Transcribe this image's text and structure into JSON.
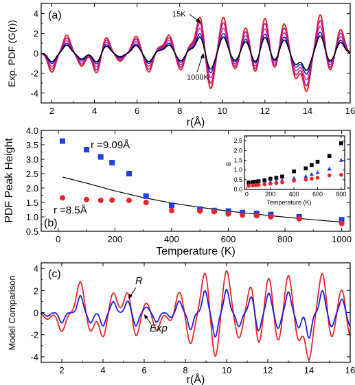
{
  "chart_data": [
    {
      "panel": "(a)",
      "type": "line",
      "xlabel": "r(Å)",
      "ylabel": "Exp. PDF (G(r))",
      "xlim": [
        1.5,
        16
      ],
      "ylim": [
        -5,
        5
      ],
      "xticks": [
        "2",
        "4",
        "6",
        "8",
        "10",
        "12",
        "14",
        "16"
      ],
      "yticks": [
        "-4",
        "-2",
        "0",
        "2",
        "4"
      ],
      "annotations": [
        "15K",
        "1000K"
      ],
      "peaks": [
        {
          "r": 2.0,
          "a": -1.9
        },
        {
          "r": 2.7,
          "a": 1.8
        },
        {
          "r": 3.4,
          "a": -1.3
        },
        {
          "r": 4.1,
          "a": -2.0
        },
        {
          "r": 4.55,
          "a": 1.6
        },
        {
          "r": 5.2,
          "a": -0.8
        },
        {
          "r": 5.95,
          "a": 1.7
        },
        {
          "r": 6.55,
          "a": -1.9
        },
        {
          "r": 7.05,
          "a": 0.6
        },
        {
          "r": 7.5,
          "a": 1.8
        },
        {
          "r": 8.05,
          "a": -1.7
        },
        {
          "r": 8.5,
          "a": 0.8
        },
        {
          "r": 8.95,
          "a": 3.6
        },
        {
          "r": 9.45,
          "a": -3.6
        },
        {
          "r": 10.05,
          "a": 3.6
        },
        {
          "r": 10.6,
          "a": -1.6
        },
        {
          "r": 11.1,
          "a": 2.6
        },
        {
          "r": 11.55,
          "a": -2.0
        },
        {
          "r": 12.0,
          "a": 3.6
        },
        {
          "r": 12.45,
          "a": -1.6
        },
        {
          "r": 12.9,
          "a": 3.0
        },
        {
          "r": 13.45,
          "a": -2.5
        },
        {
          "r": 13.95,
          "a": -3.8
        },
        {
          "r": 14.6,
          "a": 3.9
        },
        {
          "r": 15.05,
          "a": -1.8
        },
        {
          "r": 15.55,
          "a": 2.4
        }
      ],
      "series": [
        {
          "scale": 1.0,
          "color": "#e8262a",
          "width": 2.0
        },
        {
          "scale": 0.85,
          "color": "#a0179e",
          "width": 1.6
        },
        {
          "scale": 0.7,
          "color": "#e01875",
          "width": 1.4
        },
        {
          "scale": 0.55,
          "color": "#1a1ad8",
          "width": 1.6
        },
        {
          "scale": 0.45,
          "color": "#000000",
          "width": 1.6
        }
      ]
    },
    {
      "panel": "(b)",
      "type": "scatter",
      "xlabel": "Temperature (K)",
      "ylabel": "PDF Peak Height",
      "xlim": [
        -60,
        1030
      ],
      "ylim": [
        0.5,
        4.0
      ],
      "xticks": [
        "0",
        "200",
        "400",
        "600",
        "800",
        "1000"
      ],
      "yticks": [
        "0.5",
        "1.0",
        "1.5",
        "2.0",
        "2.5",
        "3.0",
        "3.5",
        "4.0"
      ],
      "annotations": [
        "r =9.09Å",
        "r =8.5Å"
      ],
      "series": [
        {
          "label": "r =9.09Å",
          "marker": "square",
          "color": "#1f3fe0",
          "x": [
            15,
            100,
            150,
            190,
            250,
            310,
            400,
            500,
            550,
            600,
            650,
            700,
            750,
            850,
            1000
          ],
          "y": [
            3.63,
            3.33,
            3.08,
            2.88,
            2.5,
            1.72,
            1.4,
            1.27,
            1.22,
            1.2,
            1.15,
            1.12,
            1.08,
            1.0,
            0.9
          ]
        },
        {
          "label": "r =8.5Å",
          "marker": "circle",
          "color": "#e8262a",
          "x": [
            15,
            100,
            150,
            190,
            250,
            310,
            400,
            500,
            550,
            600,
            650,
            700,
            750,
            850,
            1000
          ],
          "y": [
            1.66,
            1.6,
            1.57,
            1.58,
            1.57,
            1.5,
            1.22,
            1.2,
            1.18,
            1.1,
            1.06,
            1.04,
            1.0,
            0.93,
            0.77
          ]
        }
      ],
      "model_line": {
        "x": [
          15,
          100,
          200,
          300,
          400,
          500,
          600,
          700,
          800,
          900,
          1000
        ],
        "y": [
          2.38,
          2.17,
          1.9,
          1.67,
          1.48,
          1.33,
          1.2,
          1.09,
          0.99,
          0.9,
          0.82
        ]
      },
      "inset": {
        "xlabel": "Temperature (K)",
        "ylabel": "B",
        "xlim": [
          -20,
          830
        ],
        "ylim": [
          0,
          2.75
        ],
        "xticks": [
          "0",
          "200",
          "400",
          "600",
          "800"
        ],
        "yticks": [
          "0.0",
          "0.5",
          "1.0",
          "1.5",
          "2.0",
          "2.5"
        ],
        "series": [
          {
            "marker": "square",
            "color": "#000000",
            "x": [
              15,
              50,
              75,
              100,
              150,
              200,
              250,
              300,
              400,
              500,
              550,
              600,
              700,
              800
            ],
            "y": [
              0.35,
              0.38,
              0.4,
              0.42,
              0.47,
              0.55,
              0.6,
              0.66,
              0.93,
              1.08,
              1.25,
              1.42,
              1.72,
              2.37
            ]
          },
          {
            "marker": "triangle",
            "color": "#1f3fe0",
            "x": [
              15,
              50,
              75,
              100,
              150,
              200,
              250,
              300,
              400,
              500,
              550,
              600,
              700,
              800
            ],
            "y": [
              0.22,
              0.24,
              0.27,
              0.29,
              0.33,
              0.38,
              0.42,
              0.46,
              0.57,
              0.67,
              0.77,
              0.87,
              1.05,
              1.5
            ]
          },
          {
            "marker": "circle",
            "color": "#e8262a",
            "x": [
              15,
              50,
              75,
              100,
              150,
              200,
              250,
              300,
              400,
              500,
              550,
              600,
              700,
              800
            ],
            "y": [
              0.18,
              0.2,
              0.21,
              0.23,
              0.26,
              0.29,
              0.32,
              0.36,
              0.45,
              0.5,
              0.55,
              0.6,
              0.72,
              0.75
            ]
          }
        ]
      }
    },
    {
      "panel": "(c)",
      "type": "line",
      "xlabel": "r(Å)",
      "ylabel": "Model Comparison",
      "xlim": [
        1,
        16
      ],
      "ylim": [
        -4.5,
        4.5
      ],
      "xticks": [
        "2",
        "4",
        "6",
        "8",
        "10",
        "12",
        "14",
        "16"
      ],
      "yticks": [
        "-4",
        "-2",
        "0",
        "2",
        "4"
      ],
      "annotations": [
        "R",
        "Exp"
      ],
      "peaks": [
        {
          "r": 1.3,
          "a": -0.6
        },
        {
          "r": 2.0,
          "a": -1.7
        },
        {
          "r": 2.9,
          "a": 2.8
        },
        {
          "r": 3.4,
          "a": -1.7
        },
        {
          "r": 4.0,
          "a": -2.2
        },
        {
          "r": 4.5,
          "a": 1.8
        },
        {
          "r": 5.2,
          "a": 1.9
        },
        {
          "r": 5.6,
          "a": -2.2
        },
        {
          "r": 6.1,
          "a": 0.9
        },
        {
          "r": 6.6,
          "a": -1.6
        },
        {
          "r": 7.3,
          "a": -0.8
        },
        {
          "r": 7.7,
          "a": 1.9
        },
        {
          "r": 8.25,
          "a": -2.8
        },
        {
          "r": 8.95,
          "a": 3.6
        },
        {
          "r": 9.45,
          "a": -4.0
        },
        {
          "r": 10.0,
          "a": 3.8
        },
        {
          "r": 10.6,
          "a": -2.3
        },
        {
          "r": 11.2,
          "a": 2.6
        },
        {
          "r": 11.55,
          "a": -3.0
        },
        {
          "r": 12.05,
          "a": 3.2
        },
        {
          "r": 12.5,
          "a": -2.6
        },
        {
          "r": 13.0,
          "a": 3.4
        },
        {
          "r": 13.5,
          "a": -2.5
        },
        {
          "r": 14.0,
          "a": -4.2
        },
        {
          "r": 14.65,
          "a": 3.6
        },
        {
          "r": 15.1,
          "a": -2.3
        },
        {
          "r": 15.6,
          "a": 2.2
        },
        {
          "r": 16.0,
          "a": -2.2
        }
      ],
      "series": [
        {
          "label": "R",
          "scale": 1.0,
          "sharp": 1.0,
          "color": "#e8262a",
          "width": 1.8
        },
        {
          "label": "Exp",
          "scale": 0.55,
          "sharp": 1.4,
          "color": "#1f1fd8",
          "width": 1.8
        }
      ]
    }
  ]
}
